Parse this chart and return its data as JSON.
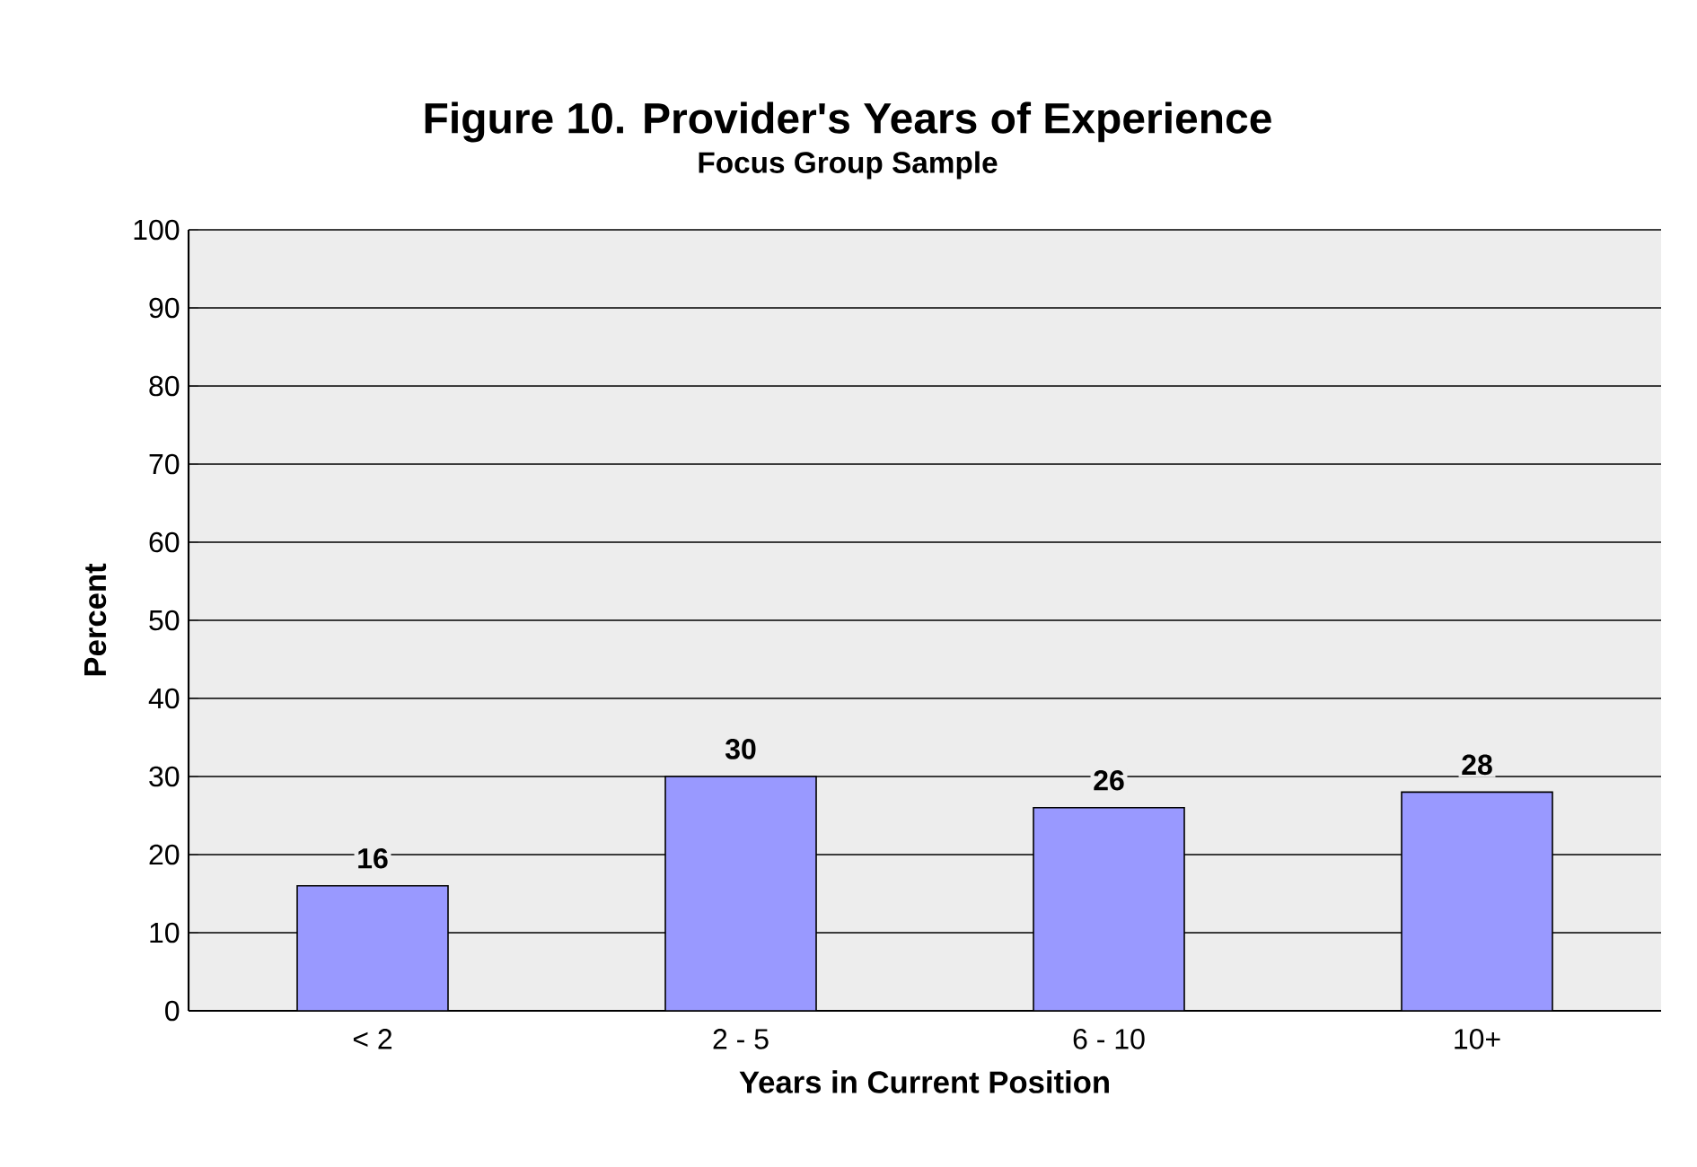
{
  "chart_data": {
    "type": "bar",
    "title": "Figure 10.  Provider's Years of Experience",
    "subtitle": "Focus Group Sample",
    "xlabel": "Years in Current Position",
    "ylabel": "Percent",
    "categories": [
      "< 2",
      "2 - 5",
      "6 - 10",
      "10+"
    ],
    "values": [
      16,
      30,
      26,
      28
    ],
    "color": "#9999ff",
    "ylim": [
      0,
      100
    ],
    "yticks": [
      0,
      10,
      20,
      30,
      40,
      50,
      60,
      70,
      80,
      90,
      100
    ],
    "grid": "y",
    "data_labels": true
  }
}
